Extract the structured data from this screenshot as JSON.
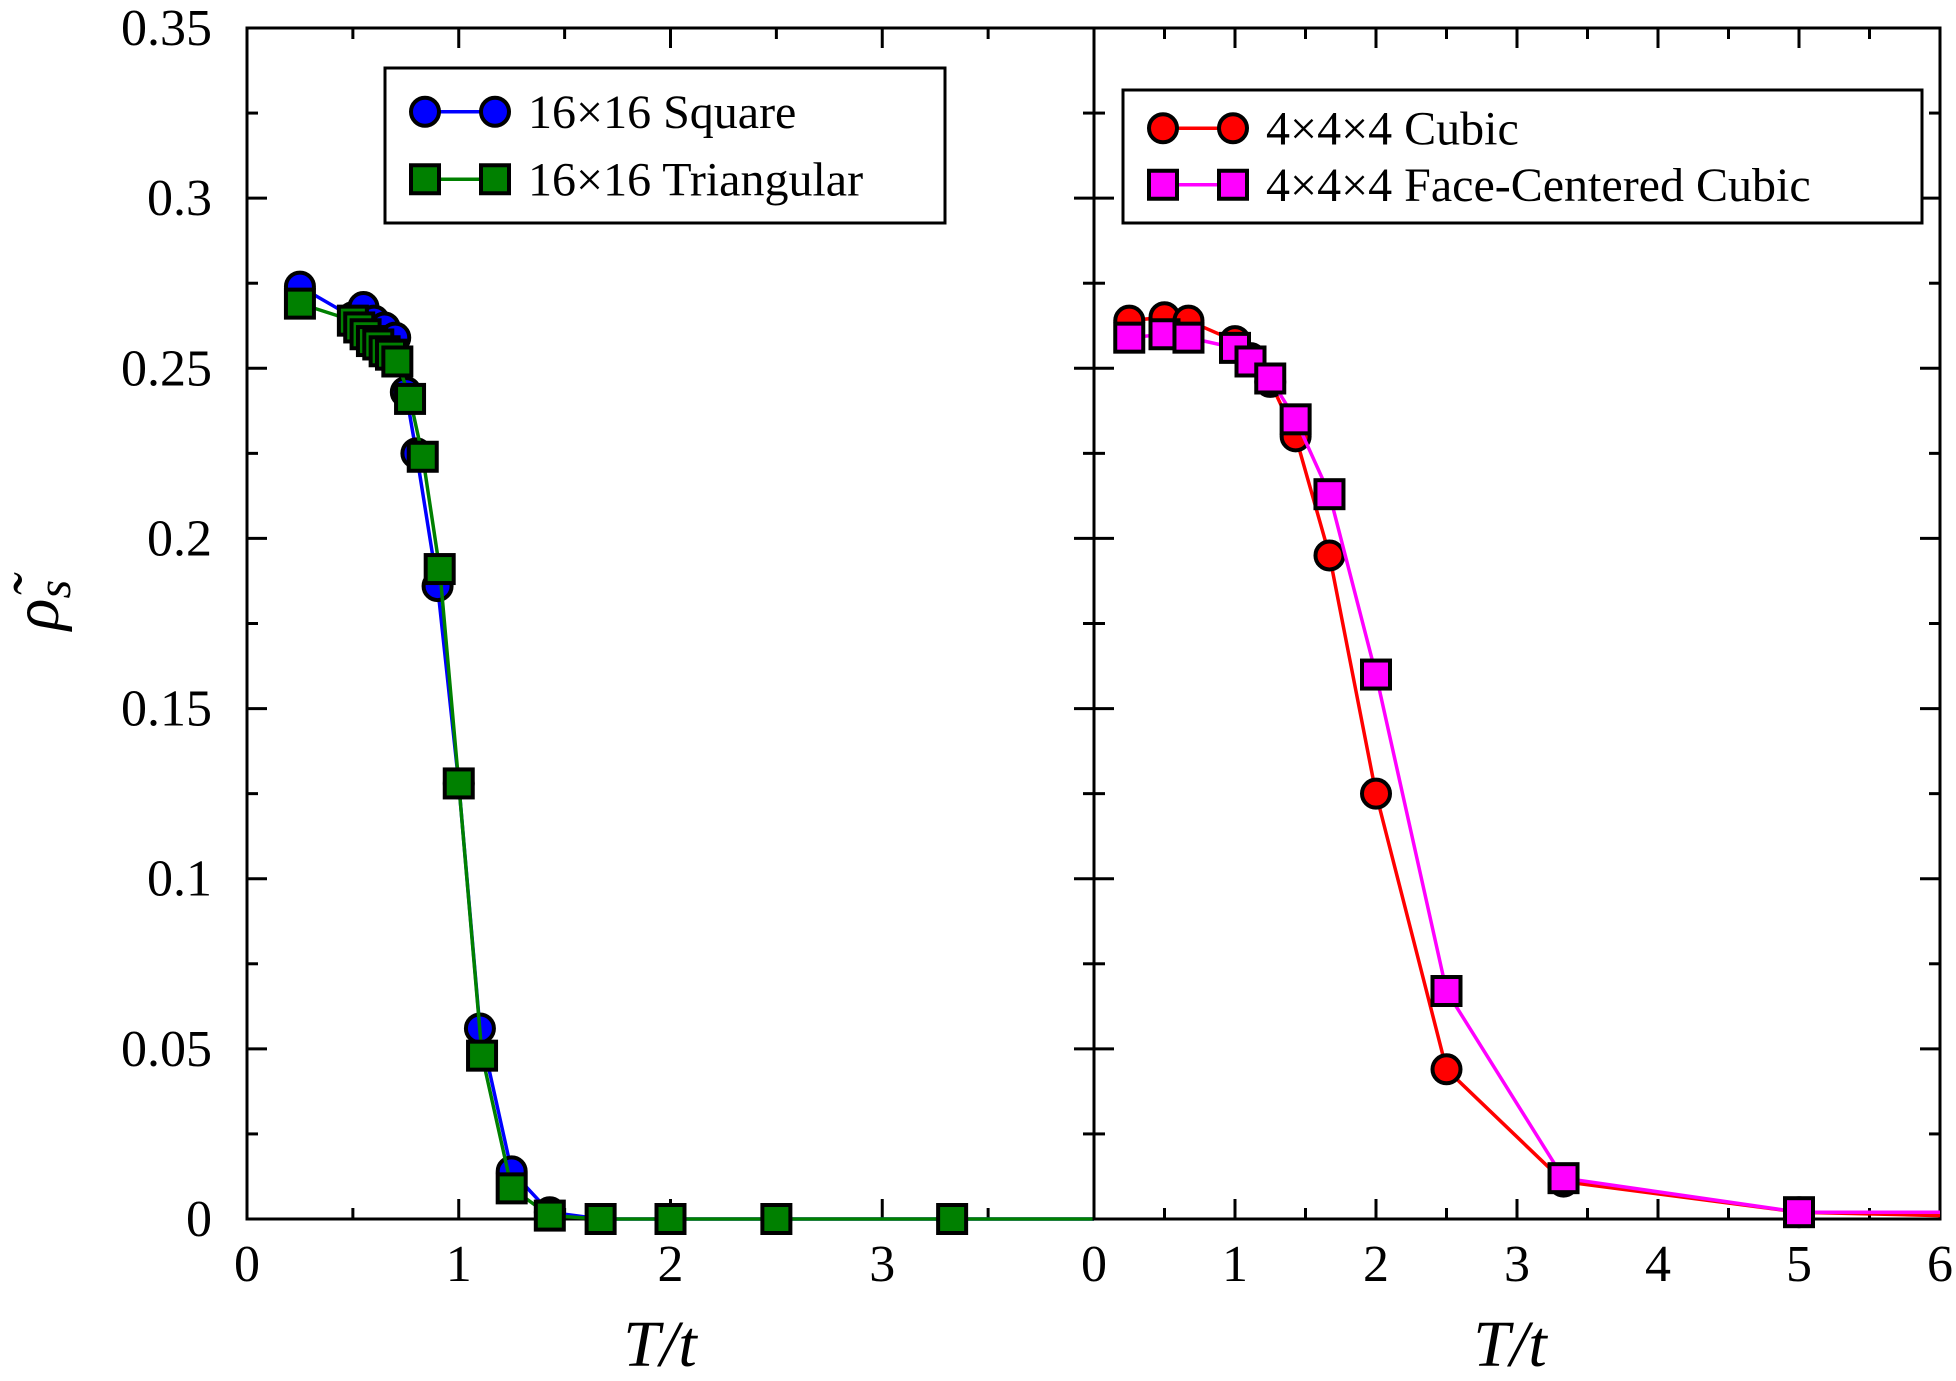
{
  "chart_data": [
    {
      "type": "line",
      "panel": "left",
      "xlabel": "T/t",
      "ylabel": "ρ̃s",
      "xlim": [
        0,
        4
      ],
      "ylim": [
        0,
        0.35
      ],
      "xticks": [
        0,
        1,
        2,
        3
      ],
      "yticks": [
        0,
        0.05,
        0.1,
        0.15,
        0.2,
        0.25,
        0.3,
        0.35
      ],
      "xtick_labels": [
        "0",
        "1",
        "2",
        "3"
      ],
      "ytick_labels": [
        "0",
        "0.05",
        "0.1",
        "0.15",
        "0.2",
        "0.25",
        "0.3",
        "0.35"
      ],
      "legend_position": "top-center",
      "series": [
        {
          "name": "16×16 Square",
          "color": "#0000ff",
          "marker": "circle",
          "x": [
            0.25,
            0.5,
            0.55,
            0.6,
            0.65,
            0.7,
            0.75,
            0.8,
            0.9,
            1.0,
            1.1,
            1.25,
            1.43,
            1.67,
            2.0,
            2.5,
            3.33,
            4.0
          ],
          "y": [
            0.274,
            0.265,
            0.268,
            0.264,
            0.262,
            0.259,
            0.243,
            0.225,
            0.186,
            0.128,
            0.056,
            0.014,
            0.002,
            0.0,
            0.0,
            0.0,
            0.0,
            0.0
          ]
        },
        {
          "name": "16×16 Triangular",
          "color": "#008000",
          "marker": "square",
          "x": [
            0.25,
            0.5,
            0.53,
            0.56,
            0.59,
            0.62,
            0.65,
            0.68,
            0.71,
            0.77,
            0.83,
            0.91,
            1.0,
            1.11,
            1.25,
            1.43,
            1.67,
            2.0,
            2.5,
            3.33,
            4.0
          ],
          "y": [
            0.269,
            0.264,
            0.262,
            0.26,
            0.258,
            0.257,
            0.255,
            0.254,
            0.252,
            0.241,
            0.224,
            0.191,
            0.128,
            0.048,
            0.009,
            0.001,
            0.0,
            0.0,
            0.0,
            0.0,
            0.0
          ]
        }
      ]
    },
    {
      "type": "line",
      "panel": "right",
      "xlabel": "T/t",
      "ylabel": "",
      "xlim": [
        0,
        6
      ],
      "ylim": [
        0,
        0.35
      ],
      "xticks": [
        0,
        1,
        2,
        3,
        4,
        5,
        6
      ],
      "xtick_labels": [
        "0",
        "1",
        "2",
        "3",
        "4",
        "5",
        "6"
      ],
      "legend_position": "top-right",
      "series": [
        {
          "name": "4×4×4 Cubic",
          "color": "#ff0000",
          "marker": "circle",
          "x": [
            0.25,
            0.5,
            0.67,
            1.0,
            1.11,
            1.25,
            1.43,
            1.67,
            2.0,
            2.5,
            3.33,
            5.0,
            6.0
          ],
          "y": [
            0.264,
            0.265,
            0.264,
            0.258,
            0.253,
            0.246,
            0.23,
            0.195,
            0.125,
            0.044,
            0.011,
            0.002,
            0.001
          ]
        },
        {
          "name": "4×4×4 Face-Centered Cubic",
          "color": "#ff00ff",
          "marker": "square",
          "x": [
            0.25,
            0.5,
            0.67,
            1.0,
            1.11,
            1.25,
            1.43,
            1.67,
            2.0,
            2.5,
            3.33,
            5.0,
            6.0
          ],
          "y": [
            0.259,
            0.26,
            0.259,
            0.256,
            0.252,
            0.247,
            0.235,
            0.213,
            0.16,
            0.067,
            0.012,
            0.002,
            0.002
          ]
        }
      ]
    }
  ]
}
